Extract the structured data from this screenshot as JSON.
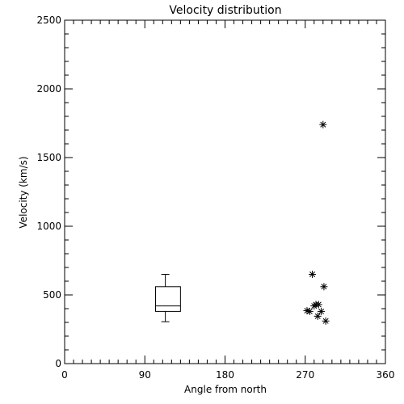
{
  "chart_data": {
    "type": "scatter",
    "title": "Velocity distribution",
    "xlabel": "Angle from north",
    "ylabel": "Velocity (km/s)",
    "xlim": [
      0,
      360
    ],
    "ylim": [
      0,
      2500
    ],
    "x_ticks": [
      0,
      90,
      180,
      270,
      360
    ],
    "y_ticks": [
      0,
      500,
      1000,
      1500,
      2000,
      2500
    ],
    "grid": false,
    "points": [
      {
        "x": 290,
        "y": 1740
      },
      {
        "x": 278,
        "y": 650
      },
      {
        "x": 291,
        "y": 560
      },
      {
        "x": 282,
        "y": 430
      },
      {
        "x": 285,
        "y": 430
      },
      {
        "x": 280,
        "y": 420
      },
      {
        "x": 272,
        "y": 385
      },
      {
        "x": 275,
        "y": 380
      },
      {
        "x": 288,
        "y": 380
      },
      {
        "x": 284,
        "y": 345
      },
      {
        "x": 293,
        "y": 310
      }
    ],
    "boxplot": {
      "x": 113,
      "x_range": [
        102,
        130
      ],
      "whisker_low": 305,
      "q1": 380,
      "median": 420,
      "q3": 560,
      "whisker_high": 650
    }
  }
}
